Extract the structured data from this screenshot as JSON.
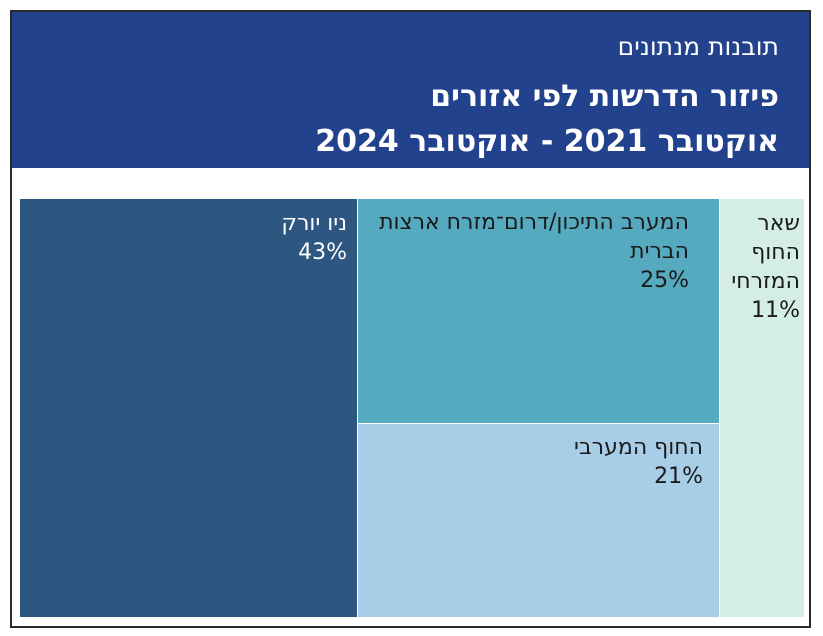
{
  "header": {
    "section": "תובנות מנתונים",
    "title_line1": "פיזור הדרשות לפי אזורים",
    "title_line2": "אוקטובר 2021 - אוקטובר 2024"
  },
  "chart_data": {
    "type": "treemap",
    "unit": "%",
    "items": [
      {
        "label": "ניו יורק",
        "value": 43,
        "value_label": "43%",
        "color": "#2d5680",
        "text_color": "#ffffff"
      },
      {
        "label": "המערב התיכון/דרום־מזרח ארצות הברית",
        "value": 25,
        "value_label": "25%",
        "color": "#55aabf",
        "text_color": "#1a1a1a"
      },
      {
        "label": "החוף המערבי",
        "value": 21,
        "value_label": "21%",
        "color": "#a8cde6",
        "text_color": "#1a1a1a"
      },
      {
        "label": "שאר החוף המזרחי",
        "value": 11,
        "value_label": "11%",
        "color": "#d4eee4",
        "text_color": "#1a1a1a"
      }
    ]
  }
}
